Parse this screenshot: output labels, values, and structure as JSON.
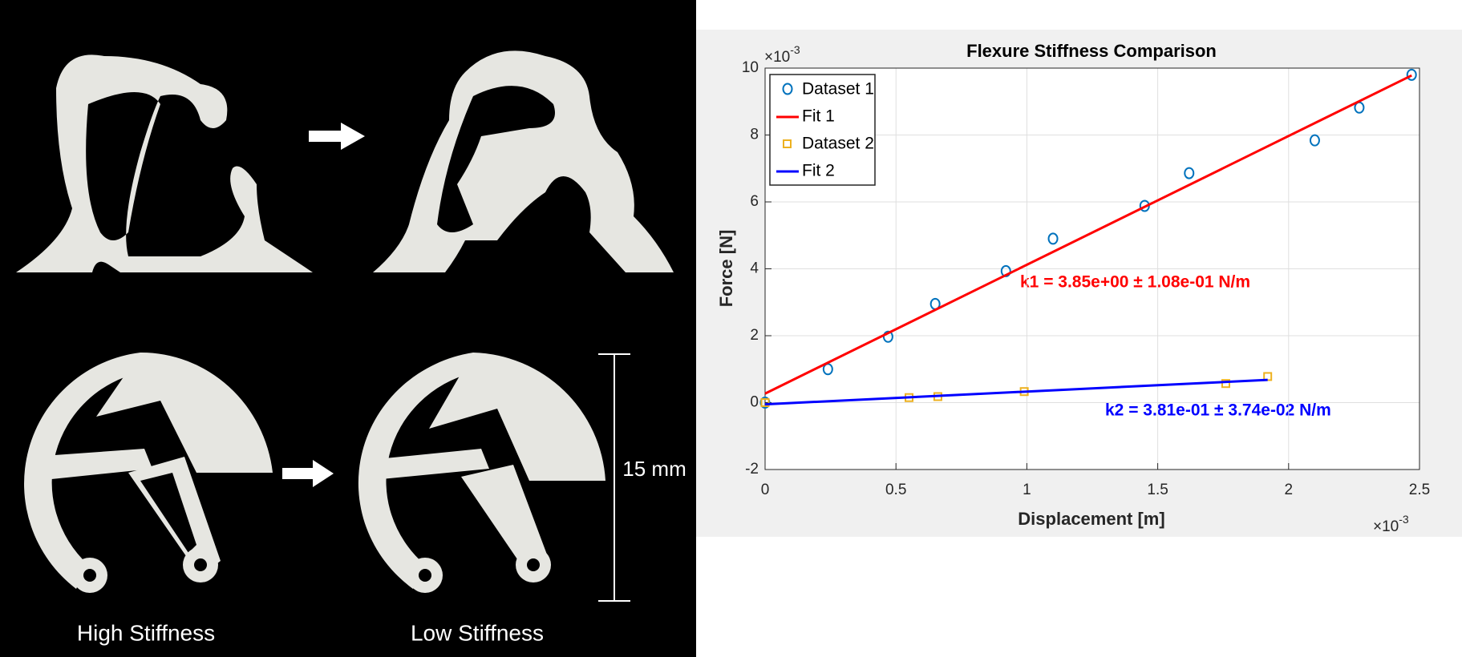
{
  "photo": {
    "labels": [
      "High Stiffness",
      "Low Stiffness"
    ],
    "scale_bar": "15 mm"
  },
  "chart_data": {
    "type": "scatter",
    "title": "Flexure Stiffness Comparison",
    "x_label": "Displacement [m]",
    "y_label": "Force [N]",
    "x_multiplier": {
      "base": "×10",
      "exponent": "-3"
    },
    "y_multiplier": {
      "base": "×10",
      "exponent": "-3"
    },
    "xlim": [
      0,
      2.5
    ],
    "ylim": [
      -2,
      10
    ],
    "xticks": [
      0,
      0.5,
      1,
      1.5,
      2,
      2.5
    ],
    "yticks": [
      -2,
      0,
      2,
      4,
      6,
      8,
      10
    ],
    "grid": true,
    "legend": "top-left",
    "series": [
      {
        "name": "Dataset 1",
        "color": "#0072bd",
        "mode": "markers",
        "marker": "circle",
        "x": [
          0,
          0.24,
          0.47,
          0.65,
          0.92,
          1.1,
          1.45,
          1.62,
          2.1,
          2.27,
          2.47
        ],
        "values": [
          0,
          1.0,
          1.97,
          2.95,
          3.93,
          4.9,
          5.88,
          6.86,
          7.84,
          8.82,
          9.8
        ]
      },
      {
        "name": "Fit 1",
        "color": "#ff0000",
        "mode": "line",
        "x": [
          0,
          2.47
        ],
        "values": [
          0.27,
          9.78
        ]
      },
      {
        "name": "Dataset 2",
        "color": "#edb120",
        "mode": "markers",
        "marker": "square",
        "x": [
          0,
          0.55,
          0.66,
          0.99,
          1.76,
          1.92
        ],
        "values": [
          0,
          0.15,
          0.18,
          0.33,
          0.57,
          0.78
        ]
      },
      {
        "name": "Fit 2",
        "color": "#0000ff",
        "mode": "line",
        "x": [
          0,
          1.92
        ],
        "values": [
          -0.05,
          0.68
        ]
      }
    ],
    "annotations": [
      {
        "text": "k1 = 3.85e+00 ± 1.08e-01 N/m",
        "color": "#ff0000"
      },
      {
        "text": "k2 = 3.81e-01 ± 3.74e-02 N/m",
        "color": "#0000ff"
      }
    ]
  }
}
